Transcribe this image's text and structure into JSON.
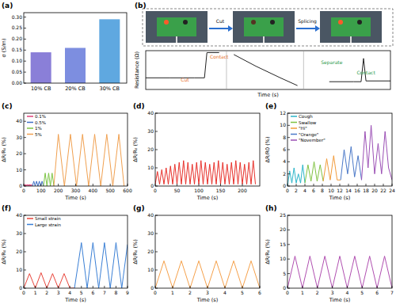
{
  "chart_data": [
    {
      "type": "bar",
      "title": "(a)",
      "y_label": "σ (S/m)",
      "categories": [
        "10% CB",
        "20% CB",
        "30% CB"
      ],
      "values": [
        0.14,
        0.16,
        0.29
      ],
      "colors": [
        "#8a7fd8",
        "#7d8ee0",
        "#5fa8e0"
      ],
      "ylim": [
        0,
        0.32
      ],
      "yticks": [
        {
          "value": 0,
          "label": "0.00"
        },
        {
          "value": 0.05,
          "label": "0.05"
        },
        {
          "value": 0.1,
          "label": "0.10"
        },
        {
          "value": 0.15,
          "label": "0.15"
        },
        {
          "value": 0.2,
          "label": "0.20"
        },
        {
          "value": 0.25,
          "label": "0.25"
        },
        {
          "value": 0.3,
          "label": "0.30"
        }
      ]
    },
    {
      "type": "line",
      "title": "(b)",
      "x_label": "Time (s)",
      "y_label": "Resistance (Ω)",
      "steps": [
        "Cut",
        "Splicing"
      ],
      "annotations": [
        "Cut",
        "Contact",
        "Separate",
        "Contact"
      ],
      "tick_labels": false,
      "xlim": [
        0,
        100
      ],
      "ylim": [
        0,
        100
      ],
      "series": [
        {
          "color": "#222222",
          "x": [
            0,
            10,
            20,
            24,
            25,
            30,
            34,
            36,
            45,
            55,
            62,
            66,
            75,
            85,
            88,
            89,
            90,
            100
          ],
          "values": [
            30,
            30,
            30,
            30,
            95,
            95,
            null,
            90,
            60,
            30,
            10,
            null,
            20,
            20,
            20,
            80,
            22,
            22
          ]
        }
      ]
    },
    {
      "type": "line",
      "title": "(c)",
      "x_label": "Time (s)",
      "y_label": "ΔR/R₀ (%)",
      "xlim": [
        0,
        600
      ],
      "xticks": [
        0,
        100,
        200,
        300,
        400,
        500,
        600
      ],
      "ylim": [
        0,
        45
      ],
      "yticks": [
        0,
        10,
        20,
        30,
        40
      ],
      "legend": "upper left",
      "series": [
        {
          "name": "0.1%",
          "color": "#e0407a",
          "x": [
            0,
            4,
            8,
            12,
            16,
            20,
            24,
            28,
            32,
            36,
            40,
            44,
            48
          ],
          "values": [
            0,
            1,
            0,
            1,
            0,
            1,
            0,
            1,
            0,
            1,
            0,
            1,
            0
          ]
        },
        {
          "name": "0.5%",
          "color": "#3d6fc4",
          "x": [
            50,
            58,
            66,
            74,
            82,
            90,
            98,
            106,
            114
          ],
          "values": [
            0,
            3,
            0,
            3,
            0,
            3,
            0,
            3,
            0
          ]
        },
        {
          "name": "1%",
          "color": "#7cc444",
          "x": [
            114,
            124,
            134,
            144,
            154,
            164,
            174
          ],
          "values": [
            0,
            8,
            0,
            8,
            0,
            8,
            0
          ]
        },
        {
          "name": "5%",
          "color": "#f0a050",
          "x": [
            174,
            200,
            235,
            270,
            305,
            340,
            375,
            410,
            445,
            480,
            515,
            550,
            580
          ],
          "values": [
            0,
            32,
            0,
            32,
            0,
            32,
            0,
            32,
            0,
            32,
            0,
            32,
            0
          ]
        }
      ]
    },
    {
      "type": "line",
      "title": "(d)",
      "x_label": "Time (s)",
      "y_label": "ΔR/R₀ (%)",
      "xlim": [
        0,
        240
      ],
      "xticks": [
        0,
        50,
        100,
        150,
        200
      ],
      "ylim": [
        0,
        40
      ],
      "yticks": [
        0,
        10,
        20,
        30,
        40
      ],
      "series": [
        {
          "color": "#e8302a",
          "x": [
            0,
            5,
            10,
            15,
            20,
            25,
            30,
            35,
            40,
            45,
            50,
            55,
            60,
            65,
            70,
            75,
            80,
            85,
            90,
            95,
            100,
            105,
            110,
            115,
            120,
            125,
            130,
            135,
            140,
            145,
            150,
            155,
            160,
            165,
            170,
            175,
            180,
            185,
            190,
            195,
            200,
            205,
            210,
            215,
            220,
            225,
            230
          ],
          "values": [
            1,
            8,
            1,
            9,
            1,
            10,
            1,
            11,
            1,
            12,
            1,
            13,
            1,
            14,
            1,
            13,
            1,
            12,
            1,
            13,
            1,
            14,
            1,
            13,
            1,
            12,
            1,
            13,
            1,
            14,
            1,
            13,
            1,
            12,
            1,
            13,
            1,
            14,
            1,
            13,
            1,
            12,
            1,
            13,
            1,
            14,
            1
          ]
        }
      ]
    },
    {
      "type": "line",
      "title": "(e)",
      "x_label": "Time (s)",
      "y_label": "ΔR/R0 (%)",
      "xlim": [
        0,
        24
      ],
      "xticks": [
        0,
        2,
        4,
        6,
        8,
        10,
        12,
        14,
        16,
        18,
        20,
        22,
        24
      ],
      "ylim": [
        0,
        12
      ],
      "yticks": [
        0,
        2,
        4,
        6,
        8,
        10,
        12
      ],
      "legend": "upper left",
      "series": [
        {
          "name": "Cough",
          "color": "#2bb5c9",
          "x": [
            0,
            0.5,
            1,
            1.5,
            2,
            2.5,
            3,
            3.5,
            4
          ],
          "values": [
            0,
            2.5,
            0.5,
            3,
            0.5,
            2,
            0.5,
            3.5,
            0.5
          ]
        },
        {
          "name": "Swallow",
          "color": "#7fc241",
          "x": [
            4,
            4.7,
            5.4,
            6.1,
            6.8,
            7.5,
            8.2
          ],
          "values": [
            0.5,
            3.5,
            0.8,
            4,
            0.8,
            3.5,
            0.8
          ]
        },
        {
          "name": "\"Hi\"",
          "color": "#f29b3a",
          "x": [
            8.2,
            9,
            9.8,
            10.6,
            11.4,
            12.2
          ],
          "values": [
            0.8,
            4.5,
            1,
            5,
            1,
            1
          ]
        },
        {
          "name": "\"Orange\"",
          "color": "#4a78c8",
          "x": [
            12.2,
            13,
            13.8,
            14.6,
            15.4,
            16.2,
            17
          ],
          "values": [
            1,
            6,
            2,
            6.5,
            1.5,
            5,
            1
          ]
        },
        {
          "name": "\"November\"",
          "color": "#9b4fb5",
          "x": [
            17,
            17.8,
            18.5,
            19.2,
            20,
            20.8,
            21.6,
            22.4,
            23.2,
            24
          ],
          "values": [
            1,
            9,
            3,
            10,
            2,
            7,
            2,
            9,
            3,
            1
          ]
        }
      ]
    },
    {
      "type": "line",
      "title": "(f)",
      "x_label": "Time (s)",
      "y_label": "ΔR/R₀ (%)",
      "xlim": [
        0,
        9
      ],
      "xticks": [
        0,
        1,
        2,
        3,
        4,
        5,
        6,
        7,
        8,
        9
      ],
      "ylim": [
        0,
        40
      ],
      "yticks": [
        0,
        10,
        20,
        30,
        40
      ],
      "legend": "upper left",
      "series": [
        {
          "name": "Small strain",
          "color": "#e8443a",
          "x": [
            0,
            0.5,
            1,
            1.5,
            2,
            2.5,
            3,
            3.5,
            4,
            4.4
          ],
          "values": [
            0,
            8,
            0,
            8.5,
            0,
            8,
            0,
            8,
            0,
            0
          ]
        },
        {
          "name": "Large strain",
          "color": "#3a7fd5",
          "x": [
            4.4,
            5,
            5.5,
            6,
            6.5,
            7,
            7.5,
            8,
            8.5,
            9
          ],
          "values": [
            0,
            25,
            0,
            25,
            0,
            25,
            0,
            25,
            0,
            24
          ]
        }
      ]
    },
    {
      "type": "line",
      "title": "(g)",
      "x_label": "Time (s)",
      "y_label": "ΔR/R₀ (%)",
      "xlim": [
        0,
        6
      ],
      "xticks": [
        0,
        1,
        2,
        3,
        4,
        5,
        6
      ],
      "ylim": [
        0,
        40
      ],
      "yticks": [
        0,
        10,
        20,
        30,
        40
      ],
      "series": [
        {
          "color": "#f5a04a",
          "x": [
            0,
            0.5,
            1,
            1.5,
            2,
            2.5,
            3,
            3.5,
            4,
            4.5,
            5,
            5.5,
            6
          ],
          "values": [
            0,
            15,
            0,
            15,
            0,
            15,
            0,
            15,
            0,
            15,
            0,
            15,
            0
          ]
        }
      ]
    },
    {
      "type": "line",
      "title": "(h)",
      "x_label": "Time (s)",
      "y_label": "ΔR/R₀ (%)",
      "xlim": [
        0,
        7
      ],
      "xticks": [
        0,
        1,
        2,
        3,
        4,
        5,
        6,
        7
      ],
      "ylim": [
        0,
        25
      ],
      "yticks": [
        0,
        5,
        10,
        15,
        20,
        25
      ],
      "series": [
        {
          "color": "#b04fb0",
          "x": [
            0,
            0.5,
            1,
            1.5,
            2,
            2.5,
            3,
            3.5,
            4,
            4.5,
            5,
            5.5,
            6,
            6.5,
            7
          ],
          "values": [
            0,
            11,
            0,
            11,
            0,
            11,
            0,
            11,
            0,
            11,
            0,
            11,
            0,
            11,
            0
          ]
        }
      ]
    }
  ]
}
